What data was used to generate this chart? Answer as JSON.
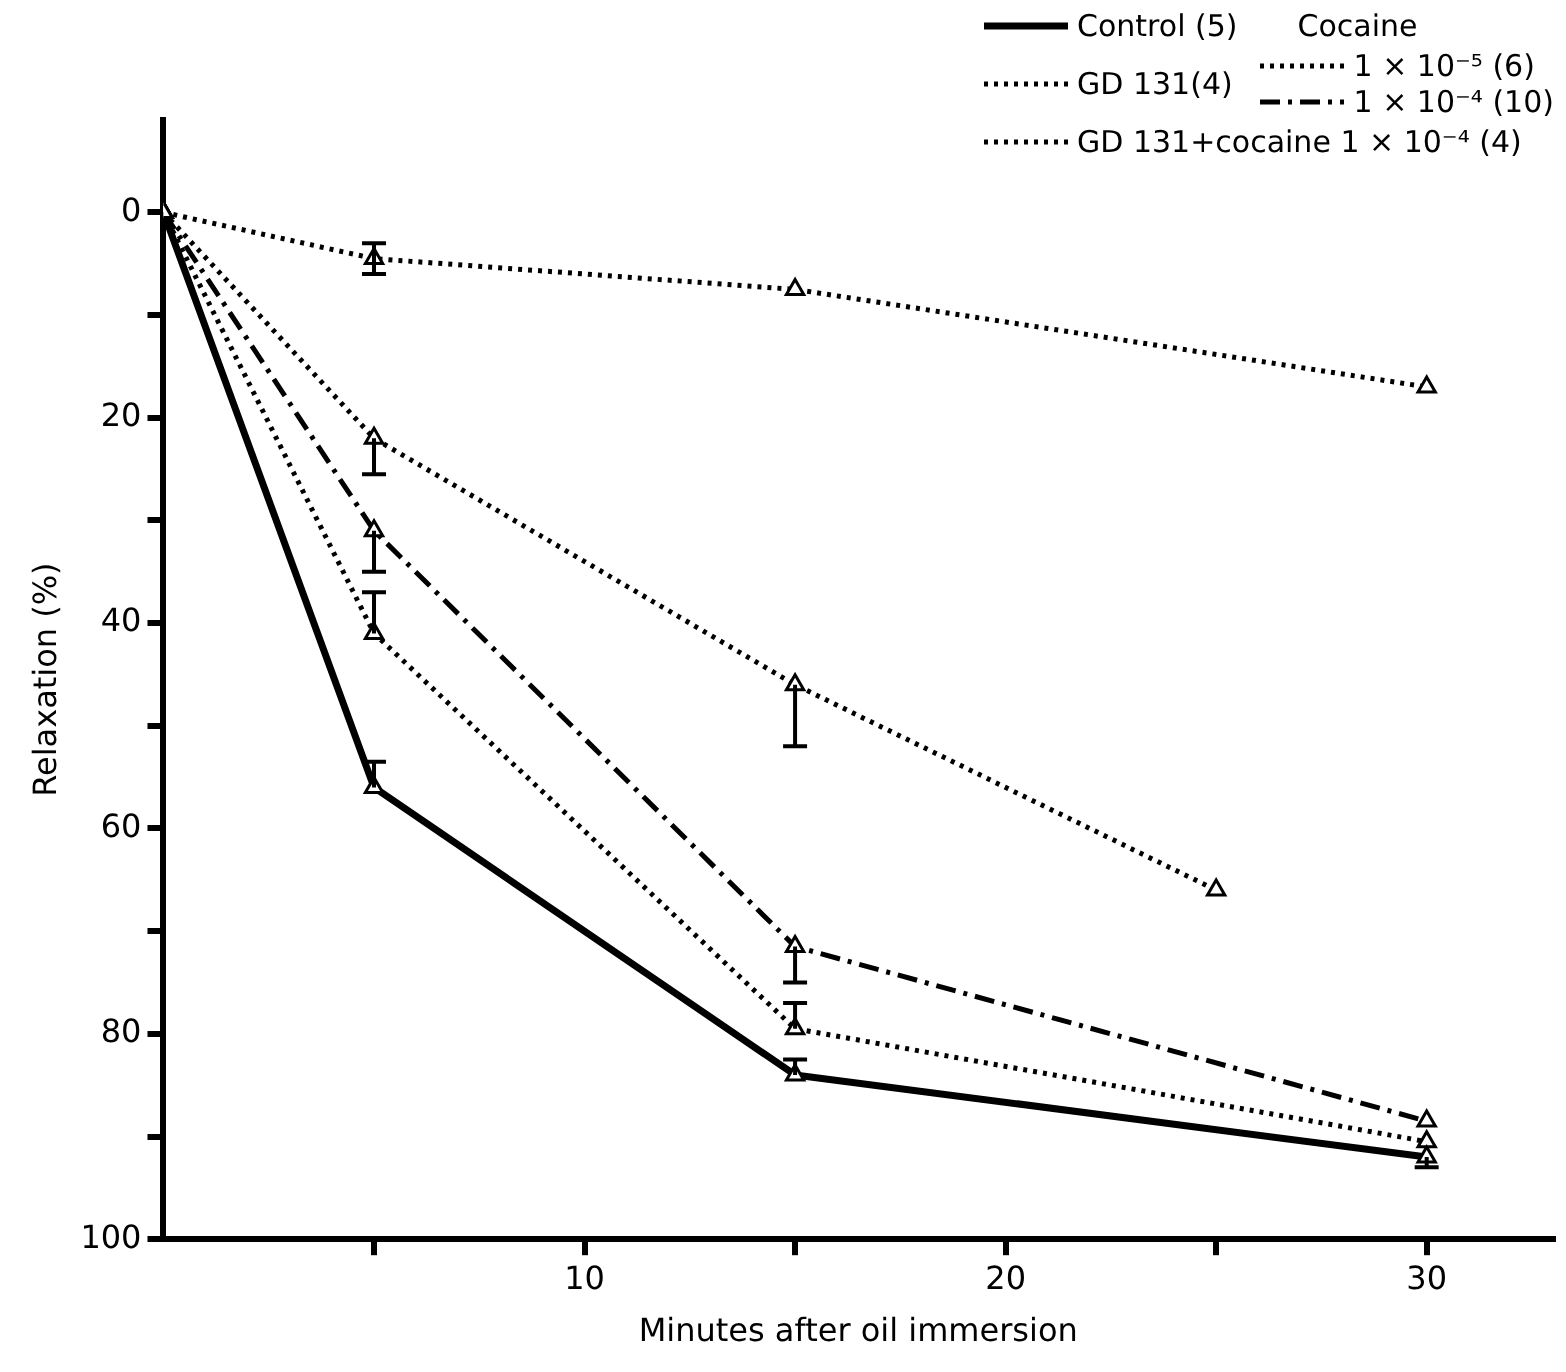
{
  "chart_data": {
    "type": "line",
    "xlabel": "Minutes after oil immersion",
    "ylabel": "Relaxation (%)",
    "legend_title": "Cocaine",
    "legend": "top right",
    "grid": false,
    "marker": "triangle",
    "xlim": [
      0,
      33
    ],
    "xticks": [
      {
        "value": 5,
        "label": null
      },
      10,
      {
        "value": 15,
        "label": null
      },
      20,
      {
        "value": 25,
        "label": null
      },
      30
    ],
    "ylim": [
      100,
      -9
    ],
    "yticks": [
      0,
      {
        "value": 10,
        "label": null
      },
      20,
      {
        "value": 30,
        "label": null
      },
      40,
      {
        "value": 50,
        "label": null
      },
      60,
      {
        "value": 70,
        "label": null
      },
      80,
      {
        "value": 90,
        "label": null
      },
      100
    ],
    "series": [
      {
        "name": "Control (5)",
        "color": "#000000",
        "line_style": "solid",
        "x": [
          0,
          5,
          15,
          30
        ],
        "values": [
          0,
          56,
          84,
          92
        ],
        "errors": [
          null,
          [
            53.5,
            56
          ],
          [
            82.5,
            84
          ],
          [
            92,
            93
          ]
        ]
      },
      {
        "name": "GD 131(4)",
        "color": "#000000",
        "line_style": "dotted",
        "x": [
          0,
          5,
          15,
          25
        ],
        "values": [
          0,
          22,
          46,
          66
        ],
        "errors": [
          null,
          [
            22,
            25.5
          ],
          [
            46,
            52
          ],
          null
        ]
      },
      {
        "name": "1 × 10⁻⁵ (6)",
        "color": "#000000",
        "line_style": "dotted",
        "x": [
          0,
          5,
          15,
          30
        ],
        "values": [
          0,
          41,
          79.5,
          90.5
        ],
        "errors": [
          null,
          [
            37,
            41
          ],
          [
            77,
            79.5
          ],
          null
        ]
      },
      {
        "name": "1 × 10⁻⁴ (10)",
        "color": "#000000",
        "line_style": "dashed",
        "x": [
          0,
          5,
          15,
          30
        ],
        "values": [
          0,
          31,
          71.5,
          88.5
        ],
        "errors": [
          null,
          [
            31,
            35
          ],
          [
            71.5,
            75
          ],
          null
        ]
      },
      {
        "name": "GD 131+cocaine 1 × 10⁻⁴ (4)",
        "color": "#000000",
        "line_style": "dotted",
        "x": [
          0,
          5,
          15,
          30
        ],
        "values": [
          0,
          4.5,
          7.5,
          17
        ],
        "errors": [
          null,
          [
            3,
            6
          ],
          null,
          null
        ]
      }
    ]
  }
}
